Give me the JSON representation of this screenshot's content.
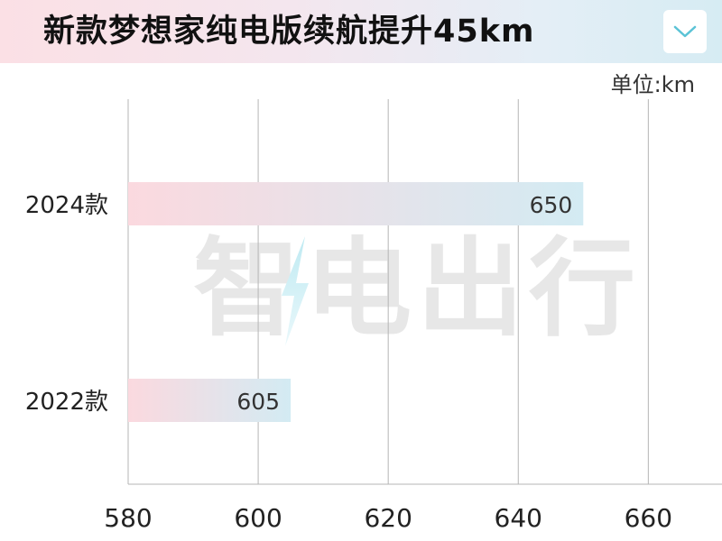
{
  "header": {
    "title": "新款梦想家纯电版续航提升45km",
    "dropdown_icon": "chevron-down-icon"
  },
  "unit_label": "单位:km",
  "watermark": {
    "text": "智电出行",
    "icon": "lightning-bolt-icon"
  },
  "colors": {
    "bar_start": "#fbd9df",
    "bar_end": "#d3ebf3",
    "grid": "#b5b5b5",
    "chevron": "#5bc3d6"
  },
  "chart_data": {
    "type": "bar",
    "orientation": "horizontal",
    "categories": [
      "2024款",
      "2022款"
    ],
    "values": [
      650,
      605
    ],
    "data_labels": [
      "650",
      "605"
    ],
    "xlim": [
      580,
      673
    ],
    "x_ticks": [
      580,
      600,
      620,
      640,
      660
    ],
    "x_tick_labels": [
      "580",
      "600",
      "620",
      "640",
      "660"
    ],
    "grid": true,
    "unit": "km"
  }
}
